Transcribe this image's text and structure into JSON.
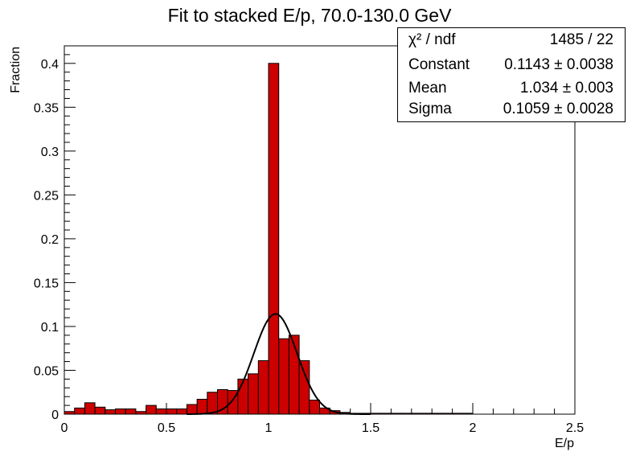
{
  "chart_data": {
    "type": "bar",
    "title": "Fit to stacked E/p, 70.0-130.0 GeV",
    "xlabel": "E/p",
    "ylabel": "Fraction",
    "xlim": [
      0,
      2.5
    ],
    "ylim": [
      0,
      0.42
    ],
    "x_ticks": [
      "0",
      "0.5",
      "1",
      "1.5",
      "2",
      "2.5"
    ],
    "y_ticks": [
      "0",
      "0.05",
      "0.1",
      "0.15",
      "0.2",
      "0.25",
      "0.3",
      "0.35",
      "0.4"
    ],
    "bin_width": 0.05,
    "bin_low_edges": [
      0,
      0.05,
      0.1,
      0.15,
      0.2,
      0.25,
      0.3,
      0.35,
      0.4,
      0.45,
      0.5,
      0.55,
      0.6,
      0.65,
      0.7,
      0.75,
      0.8,
      0.85,
      0.9,
      0.95,
      1.0,
      1.05,
      1.1,
      1.15,
      1.2,
      1.25,
      1.3,
      1.35,
      1.4,
      1.45,
      1.5,
      1.55,
      1.6,
      1.65,
      1.7,
      1.75,
      1.8,
      1.85,
      1.9,
      1.95,
      2.0,
      2.05,
      2.1,
      2.15,
      2.2,
      2.25,
      2.3,
      2.35,
      2.4,
      2.45
    ],
    "values": [
      0.003,
      0.007,
      0.013,
      0.008,
      0.005,
      0.006,
      0.006,
      0.003,
      0.01,
      0.006,
      0.006,
      0.006,
      0.011,
      0.017,
      0.025,
      0.028,
      0.027,
      0.04,
      0.046,
      0.061,
      0.4,
      0.086,
      0.09,
      0.061,
      0.016,
      0.007,
      0.004,
      0.002,
      0.001,
      0.001,
      0.001,
      0.001,
      0.001,
      0.001,
      0.001,
      0.001,
      0.001,
      0.001,
      0.001,
      0.001,
      0.0,
      0.0,
      0.0,
      0.0,
      0.0,
      0.0,
      0.0,
      0.0,
      0.0,
      0.0
    ],
    "fit": {
      "function": "gaus",
      "constant": 0.1143,
      "mean": 1.034,
      "sigma": 0.1059
    },
    "colors": {
      "fill": "#cc0000",
      "edge": "#000000",
      "fit_line": "#000000"
    },
    "stats": [
      {
        "name": "χ² / ndf",
        "value": "1485 / 22"
      },
      {
        "name": "Constant",
        "value": "0.1143 ± 0.0038"
      },
      {
        "name": "Mean",
        "value": "1.034 ± 0.003"
      },
      {
        "name": "Sigma",
        "value": "0.1059 ± 0.0028"
      }
    ]
  }
}
